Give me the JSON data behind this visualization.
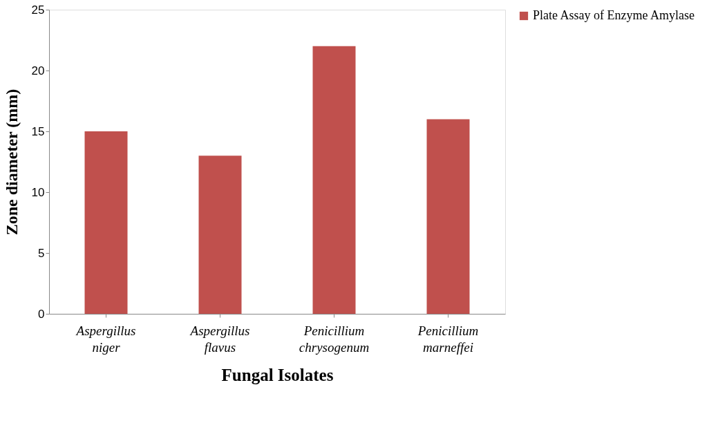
{
  "chart_data": {
    "type": "bar",
    "xlabel": "Fungal Isolates",
    "ylabel": "Zone diameter (mm)",
    "categories": [
      "Aspergillus niger",
      "Aspergillus flavus",
      "Penicillium chrysogenum",
      "Penicillium marneffei"
    ],
    "series": [
      {
        "name": "Plate Assay of Enzyme Amylase",
        "color": "#c0504d",
        "values": [
          15,
          13,
          22,
          16
        ]
      }
    ],
    "ylim": [
      0,
      25
    ],
    "yticks": [
      0,
      5,
      10,
      15,
      20,
      25
    ],
    "grid": false,
    "legend": "right"
  }
}
